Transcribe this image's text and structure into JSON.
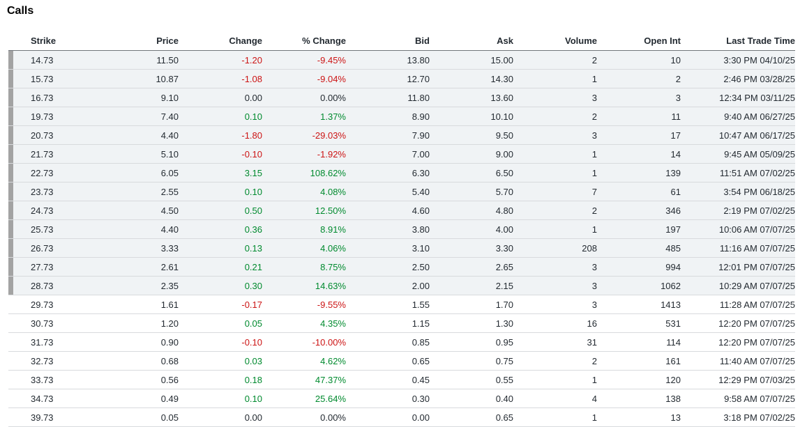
{
  "title": "Calls",
  "columns": {
    "strike": "Strike",
    "price": "Price",
    "change": "Change",
    "pct_change": "% Change",
    "bid": "Bid",
    "ask": "Ask",
    "volume": "Volume",
    "open_int": "Open Int",
    "last_trade": "Last Trade Time"
  },
  "colors": {
    "positive": "#008a2e",
    "negative": "#cc1414",
    "in_the_money_bg": "#f0f3f5",
    "in_the_money_marker": "#a3a3a3"
  },
  "rows": [
    {
      "strike": "14.73",
      "price": "11.50",
      "change": "-1.20",
      "pct": "-9.45%",
      "bid": "13.80",
      "ask": "15.00",
      "volume": "2",
      "open_int": "10",
      "last": "3:30 PM 04/10/25",
      "itm": true,
      "dir": "neg"
    },
    {
      "strike": "15.73",
      "price": "10.87",
      "change": "-1.08",
      "pct": "-9.04%",
      "bid": "12.70",
      "ask": "14.30",
      "volume": "1",
      "open_int": "2",
      "last": "2:46 PM 03/28/25",
      "itm": true,
      "dir": "neg"
    },
    {
      "strike": "16.73",
      "price": "9.10",
      "change": "0.00",
      "pct": "0.00%",
      "bid": "11.80",
      "ask": "13.60",
      "volume": "3",
      "open_int": "3",
      "last": "12:34 PM 03/11/25",
      "itm": true,
      "dir": "flat"
    },
    {
      "strike": "19.73",
      "price": "7.40",
      "change": "0.10",
      "pct": "1.37%",
      "bid": "8.90",
      "ask": "10.10",
      "volume": "2",
      "open_int": "11",
      "last": "9:40 AM 06/27/25",
      "itm": true,
      "dir": "pos"
    },
    {
      "strike": "20.73",
      "price": "4.40",
      "change": "-1.80",
      "pct": "-29.03%",
      "bid": "7.90",
      "ask": "9.50",
      "volume": "3",
      "open_int": "17",
      "last": "10:47 AM 06/17/25",
      "itm": true,
      "dir": "neg"
    },
    {
      "strike": "21.73",
      "price": "5.10",
      "change": "-0.10",
      "pct": "-1.92%",
      "bid": "7.00",
      "ask": "9.00",
      "volume": "1",
      "open_int": "14",
      "last": "9:45 AM 05/09/25",
      "itm": true,
      "dir": "neg"
    },
    {
      "strike": "22.73",
      "price": "6.05",
      "change": "3.15",
      "pct": "108.62%",
      "bid": "6.30",
      "ask": "6.50",
      "volume": "1",
      "open_int": "139",
      "last": "11:51 AM 07/02/25",
      "itm": true,
      "dir": "pos"
    },
    {
      "strike": "23.73",
      "price": "2.55",
      "change": "0.10",
      "pct": "4.08%",
      "bid": "5.40",
      "ask": "5.70",
      "volume": "7",
      "open_int": "61",
      "last": "3:54 PM 06/18/25",
      "itm": true,
      "dir": "pos"
    },
    {
      "strike": "24.73",
      "price": "4.50",
      "change": "0.50",
      "pct": "12.50%",
      "bid": "4.60",
      "ask": "4.80",
      "volume": "2",
      "open_int": "346",
      "last": "2:19 PM 07/02/25",
      "itm": true,
      "dir": "pos"
    },
    {
      "strike": "25.73",
      "price": "4.40",
      "change": "0.36",
      "pct": "8.91%",
      "bid": "3.80",
      "ask": "4.00",
      "volume": "1",
      "open_int": "197",
      "last": "10:06 AM 07/07/25",
      "itm": true,
      "dir": "pos"
    },
    {
      "strike": "26.73",
      "price": "3.33",
      "change": "0.13",
      "pct": "4.06%",
      "bid": "3.10",
      "ask": "3.30",
      "volume": "208",
      "open_int": "485",
      "last": "11:16 AM 07/07/25",
      "itm": true,
      "dir": "pos"
    },
    {
      "strike": "27.73",
      "price": "2.61",
      "change": "0.21",
      "pct": "8.75%",
      "bid": "2.50",
      "ask": "2.65",
      "volume": "3",
      "open_int": "994",
      "last": "12:01 PM 07/07/25",
      "itm": true,
      "dir": "pos"
    },
    {
      "strike": "28.73",
      "price": "2.35",
      "change": "0.30",
      "pct": "14.63%",
      "bid": "2.00",
      "ask": "2.15",
      "volume": "3",
      "open_int": "1062",
      "last": "10:29 AM 07/07/25",
      "itm": true,
      "dir": "pos"
    },
    {
      "strike": "29.73",
      "price": "1.61",
      "change": "-0.17",
      "pct": "-9.55%",
      "bid": "1.55",
      "ask": "1.70",
      "volume": "3",
      "open_int": "1413",
      "last": "11:28 AM 07/07/25",
      "itm": false,
      "dir": "neg"
    },
    {
      "strike": "30.73",
      "price": "1.20",
      "change": "0.05",
      "pct": "4.35%",
      "bid": "1.15",
      "ask": "1.30",
      "volume": "16",
      "open_int": "531",
      "last": "12:20 PM 07/07/25",
      "itm": false,
      "dir": "pos"
    },
    {
      "strike": "31.73",
      "price": "0.90",
      "change": "-0.10",
      "pct": "-10.00%",
      "bid": "0.85",
      "ask": "0.95",
      "volume": "31",
      "open_int": "114",
      "last": "12:20 PM 07/07/25",
      "itm": false,
      "dir": "neg"
    },
    {
      "strike": "32.73",
      "price": "0.68",
      "change": "0.03",
      "pct": "4.62%",
      "bid": "0.65",
      "ask": "0.75",
      "volume": "2",
      "open_int": "161",
      "last": "11:40 AM 07/07/25",
      "itm": false,
      "dir": "pos"
    },
    {
      "strike": "33.73",
      "price": "0.56",
      "change": "0.18",
      "pct": "47.37%",
      "bid": "0.45",
      "ask": "0.55",
      "volume": "1",
      "open_int": "120",
      "last": "12:29 PM 07/03/25",
      "itm": false,
      "dir": "pos"
    },
    {
      "strike": "34.73",
      "price": "0.49",
      "change": "0.10",
      "pct": "25.64%",
      "bid": "0.30",
      "ask": "0.40",
      "volume": "4",
      "open_int": "138",
      "last": "9:58 AM 07/07/25",
      "itm": false,
      "dir": "pos"
    },
    {
      "strike": "39.73",
      "price": "0.05",
      "change": "0.00",
      "pct": "0.00%",
      "bid": "0.00",
      "ask": "0.65",
      "volume": "1",
      "open_int": "13",
      "last": "3:18 PM 07/02/25",
      "itm": false,
      "dir": "flat"
    }
  ]
}
